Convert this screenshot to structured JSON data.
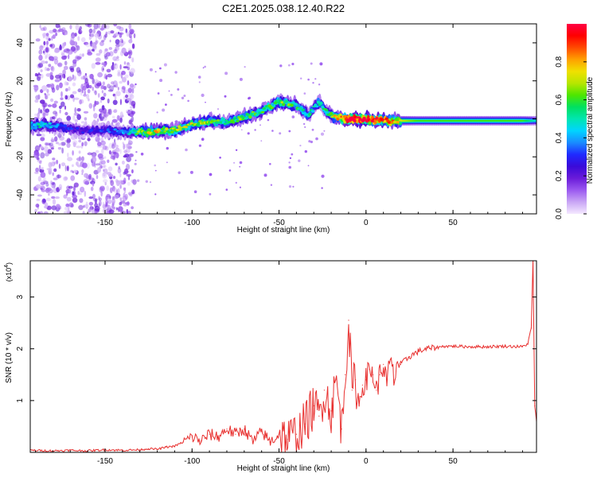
{
  "title": "C2E1.2025.038.12.40.R22",
  "chart_data": [
    {
      "type": "heatmap",
      "xlabel": "Height of straight line (km)",
      "ylabel": "Frequency (Hz)",
      "xlim": [
        -193,
        98
      ],
      "ylim": [
        -50,
        50
      ],
      "xticks": [
        -150,
        -100,
        -50,
        0,
        50
      ],
      "yticks": [
        -40,
        -20,
        0,
        20,
        40
      ],
      "colorbar": {
        "label": "Normalized spectral amplitude",
        "range": [
          0,
          1
        ],
        "ticks": [
          0.0,
          0.2,
          0.4,
          0.6,
          0.8
        ],
        "colors": [
          "#f4e8ff",
          "#c9a6f5",
          "#9b59f0",
          "#6a1bd9",
          "#3a0ad9",
          "#1f2aff",
          "#1a8cff",
          "#00d4ff",
          "#00e6b0",
          "#00e060",
          "#4ee600",
          "#b8e600",
          "#f0e000",
          "#ffa000",
          "#ff4a00",
          "#ff0000",
          "#ff0044"
        ]
      },
      "noise_region": {
        "x": [
          -190,
          -133
        ],
        "y": [
          -50,
          50
        ],
        "amplitude": 0.2
      },
      "ridge": [
        {
          "x": -193,
          "y": -4,
          "amp": 0.35
        },
        {
          "x": -185,
          "y": -3,
          "amp": 0.35
        },
        {
          "x": -176,
          "y": -4,
          "amp": 0.25
        },
        {
          "x": -165,
          "y": -6,
          "amp": 0.18
        },
        {
          "x": -150,
          "y": -6,
          "amp": 0.22
        },
        {
          "x": -138,
          "y": -7,
          "amp": 0.3
        },
        {
          "x": -125,
          "y": -7,
          "amp": 0.55
        },
        {
          "x": -110,
          "y": -6,
          "amp": 0.45
        },
        {
          "x": -100,
          "y": -3,
          "amp": 0.5
        },
        {
          "x": -90,
          "y": -1,
          "amp": 0.45
        },
        {
          "x": -80,
          "y": -2,
          "amp": 0.4
        },
        {
          "x": -70,
          "y": 1,
          "amp": 0.45
        },
        {
          "x": -60,
          "y": 4,
          "amp": 0.4
        },
        {
          "x": -50,
          "y": 9,
          "amp": 0.45
        },
        {
          "x": -40,
          "y": 7,
          "amp": 0.4
        },
        {
          "x": -33,
          "y": 2,
          "amp": 0.35
        },
        {
          "x": -27,
          "y": 9,
          "amp": 0.35
        },
        {
          "x": -22,
          "y": 3,
          "amp": 0.4
        },
        {
          "x": -18,
          "y": 1,
          "amp": 0.5
        },
        {
          "x": -10,
          "y": 0,
          "amp": 0.85
        },
        {
          "x": -2,
          "y": 0,
          "amp": 0.85
        },
        {
          "x": 8,
          "y": -1,
          "amp": 0.7
        },
        {
          "x": 18,
          "y": -1,
          "amp": 0.55
        },
        {
          "x": 30,
          "y": -1,
          "amp": 0.45
        },
        {
          "x": 50,
          "y": -1,
          "amp": 0.45
        },
        {
          "x": 70,
          "y": -1,
          "amp": 0.45
        },
        {
          "x": 90,
          "y": -1,
          "amp": 0.45
        },
        {
          "x": 98,
          "y": -1,
          "amp": 0.35
        }
      ]
    },
    {
      "type": "line",
      "xlabel": "Height of straight line (km)",
      "ylabel": "SNR (10 * v/v)",
      "scale_label": "(x10",
      "scale_exponent": "4",
      "xlim": [
        -193,
        98
      ],
      "ylim": [
        0,
        3.7
      ],
      "xticks": [
        -150,
        -100,
        -50,
        0,
        50
      ],
      "yticks": [
        1,
        2,
        3
      ],
      "series": [
        {
          "color": "#e8302f",
          "x": [
            -193,
            -180,
            -170,
            -160,
            -150,
            -140,
            -130,
            -125,
            -120,
            -115,
            -110,
            -105,
            -100,
            -95,
            -90,
            -85,
            -80,
            -75,
            -70,
            -65,
            -60,
            -55,
            -50,
            -45,
            -40,
            -35,
            -30,
            -27,
            -24,
            -20,
            -17,
            -14,
            -12,
            -10,
            -8,
            -6,
            -4,
            -2,
            0,
            2,
            4,
            6,
            8,
            10,
            12,
            14,
            16,
            18,
            20,
            25,
            30,
            35,
            40,
            45,
            50,
            60,
            70,
            80,
            90,
            93,
            95,
            96,
            97,
            98
          ],
          "y": [
            0.04,
            0.03,
            0.04,
            0.03,
            0.05,
            0.04,
            0.05,
            0.07,
            0.06,
            0.1,
            0.12,
            0.2,
            0.3,
            0.22,
            0.35,
            0.3,
            0.45,
            0.35,
            0.45,
            0.2,
            0.4,
            0.2,
            0.35,
            0.25,
            0.35,
            0.55,
            0.9,
            0.7,
            1.2,
            0.8,
            1.4,
            0.45,
            1.5,
            2.55,
            1.2,
            1.4,
            0.9,
            1.3,
            1.4,
            1.6,
            1.5,
            1.2,
            1.5,
            1.7,
            1.3,
            1.8,
            1.4,
            1.75,
            1.7,
            1.85,
            1.95,
            2.0,
            2.02,
            2.05,
            2.05,
            2.04,
            2.04,
            2.05,
            2.04,
            2.1,
            2.4,
            3.7,
            0.9,
            0.6
          ]
        }
      ]
    }
  ]
}
